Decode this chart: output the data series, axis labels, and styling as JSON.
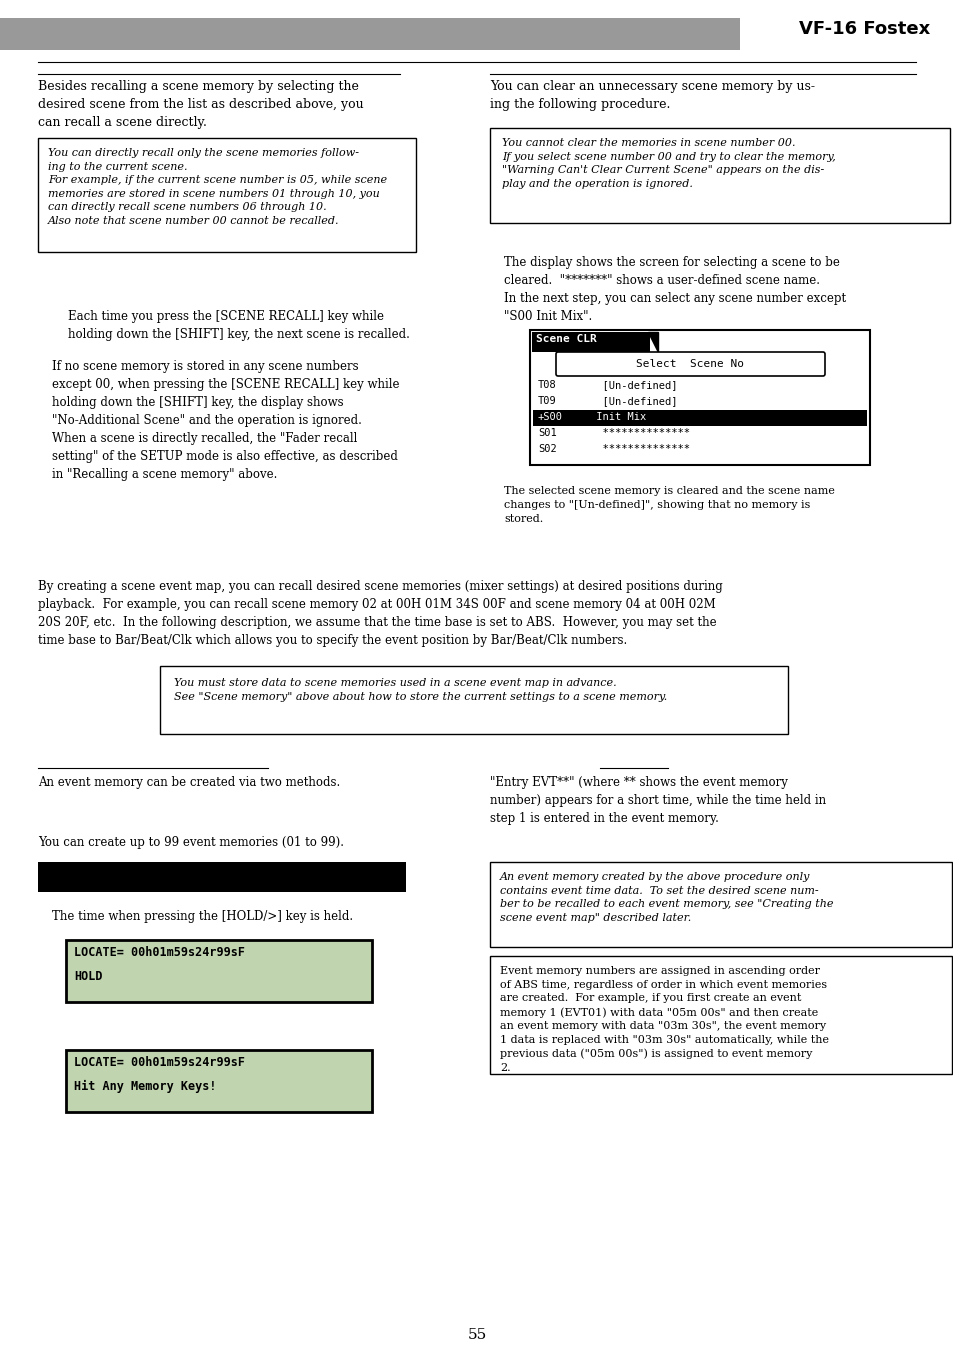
{
  "header_bar_color": "#999999",
  "header_text": "VF-16 Fostex",
  "bg_color": "#ffffff",
  "page_number": "55",
  "note1_left_text_line1": "You can directly recall only the scene memories follow-",
  "note1_left_text_line2": "ing to the current scene.",
  "note1_left_text_line3": "For example, if the current scene number is 05, while scene",
  "note1_left_text_line4": "memories are stored in scene numbers 01 through 10, you",
  "note1_left_text_line5": "can directly recall scene numbers 06 through 10.",
  "note1_left_text_line6": "Also note that scene number 00 cannot be recalled.",
  "note1_right_text_line1": "You cannot clear the memories in scene number 00.",
  "note1_right_text_line2": "If you select scene number 00 and try to clear the memory,",
  "note1_right_text_line3": "\"Warning Can't Clear Current Scene\" appears on the dis-",
  "note1_right_text_line4": "play and the operation is ignored.",
  "note2_text_line1": "You must store data to scene memories used in a scene event map in advance.",
  "note2_text_line2": "See \"Scene memory\" above about how to store the current settings to a scene memory.",
  "note3_right_text_line1": "An event memory created by the above procedure only",
  "note3_right_text_line2": "contains event time data.  To set the desired scene num-",
  "note3_right_text_line3": "ber to be recalled to each event memory, see \"Creating the",
  "note3_right_text_line4": "scene event map\" described later.",
  "note4_right_text_line1": "Event memory numbers are assigned in ascending order",
  "note4_right_text_line2": "of ABS time, regardless of order in which event memories",
  "note4_right_text_line3": "are created.  For example, if you first create an event",
  "note4_right_text_line4": "memory 1 (EVT01) with data \"05m 00s\" and then create",
  "note4_right_text_line5": "an event memory with data \"03m 30s\", the event memory",
  "note4_right_text_line6": "1 data is replaced with \"03m 30s\" automatically, while the",
  "note4_right_text_line7": "previous data (\"05m 00s\") is assigned to event memory",
  "note4_right_text_line8": "2."
}
